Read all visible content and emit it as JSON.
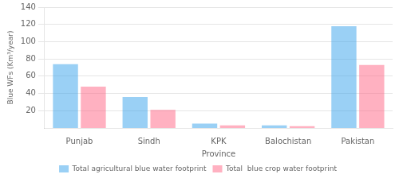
{
  "chart_data": {
    "type": "bar",
    "categories": [
      "Punjab",
      "Sindh",
      "KPK",
      "Balochistan",
      "Pakistan"
    ],
    "series": [
      {
        "name": "Total agricultural blue water footprint",
        "values": [
          74,
          36,
          5,
          3,
          118
        ]
      },
      {
        "name": "Total  blue crop water footprint",
        "values": [
          48,
          21,
          3,
          2,
          73
        ]
      }
    ],
    "xlabel": "Province",
    "ylabel": "Blue WFs (Km³/year)",
    "ylim": [
      0,
      140
    ],
    "yticks": [
      20,
      40,
      60,
      80,
      100,
      120,
      140
    ],
    "grid": true,
    "legend": "bottom"
  }
}
